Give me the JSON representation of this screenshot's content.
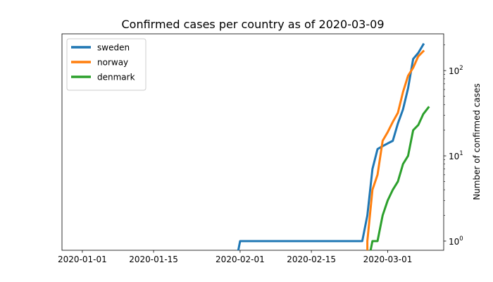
{
  "chart_data": {
    "type": "line",
    "title": "Confirmed cases per country as of 2020-03-09",
    "xlabel": "",
    "ylabel": "Number of confirmed cases",
    "y_scale": "log",
    "y_axis_position": "right",
    "xlim": [
      "2019-12-28",
      "2020-03-12"
    ],
    "ylim": [
      0.78,
      270
    ],
    "x_ticks": [
      "2020-01-01",
      "2020-01-15",
      "2020-02-01",
      "2020-02-15",
      "2020-03-01"
    ],
    "y_ticks": [
      {
        "value": 1,
        "base": "10",
        "exp": "0"
      },
      {
        "value": 10,
        "base": "10",
        "exp": "1"
      },
      {
        "value": 100,
        "base": "10",
        "exp": "2"
      }
    ],
    "grid": false,
    "legend_position": "upper left",
    "series": [
      {
        "name": "sweden",
        "color": "#1f77b4",
        "points": [
          [
            "2020-01-31",
            0.5
          ],
          [
            "2020-02-01",
            1
          ],
          [
            "2020-02-25",
            1
          ],
          [
            "2020-02-26",
            2
          ],
          [
            "2020-02-27",
            7
          ],
          [
            "2020-02-28",
            12
          ],
          [
            "2020-02-29",
            13
          ],
          [
            "2020-03-01",
            14
          ],
          [
            "2020-03-02",
            15
          ],
          [
            "2020-03-03",
            24
          ],
          [
            "2020-03-04",
            35
          ],
          [
            "2020-03-05",
            62
          ],
          [
            "2020-03-06",
            137
          ],
          [
            "2020-03-07",
            161
          ],
          [
            "2020-03-08",
            203
          ]
        ]
      },
      {
        "name": "norway",
        "color": "#ff7f0e",
        "points": [
          [
            "2020-02-26",
            0.5
          ],
          [
            "2020-02-26",
            1
          ],
          [
            "2020-02-27",
            4
          ],
          [
            "2020-02-28",
            6
          ],
          [
            "2020-02-29",
            15
          ],
          [
            "2020-03-01",
            19
          ],
          [
            "2020-03-02",
            25
          ],
          [
            "2020-03-03",
            32
          ],
          [
            "2020-03-04",
            56
          ],
          [
            "2020-03-05",
            87
          ],
          [
            "2020-03-06",
            108
          ],
          [
            "2020-03-07",
            147
          ],
          [
            "2020-03-08",
            169
          ]
        ]
      },
      {
        "name": "denmark",
        "color": "#2ca02c",
        "points": [
          [
            "2020-02-26",
            0.5
          ],
          [
            "2020-02-27",
            1
          ],
          [
            "2020-02-28",
            1
          ],
          [
            "2020-02-29",
            2
          ],
          [
            "2020-03-01",
            3
          ],
          [
            "2020-03-02",
            4
          ],
          [
            "2020-03-03",
            5
          ],
          [
            "2020-03-04",
            8
          ],
          [
            "2020-03-05",
            10
          ],
          [
            "2020-03-06",
            20
          ],
          [
            "2020-03-07",
            23
          ],
          [
            "2020-03-08",
            31
          ],
          [
            "2020-03-09",
            37
          ]
        ]
      }
    ]
  }
}
